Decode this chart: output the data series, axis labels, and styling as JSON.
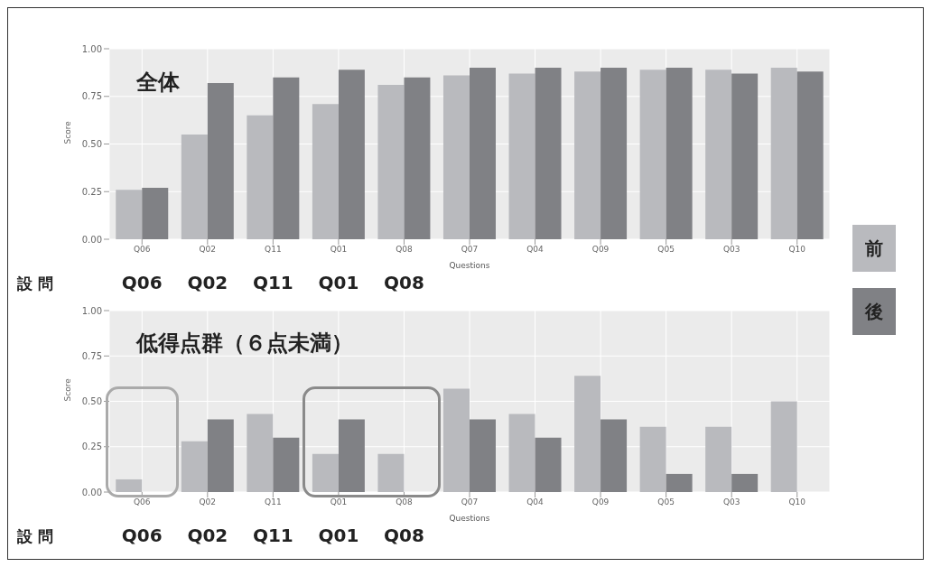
{
  "chart_data": [
    {
      "type": "bar",
      "title": "全体",
      "xlabel": "Questions",
      "ylabel": "Score",
      "categories": [
        "Q06",
        "Q02",
        "Q11",
        "Q01",
        "Q08",
        "Q07",
        "Q04",
        "Q09",
        "Q05",
        "Q03",
        "Q10"
      ],
      "series": [
        {
          "name": "前",
          "color": "#b9babe",
          "values": [
            0.26,
            0.55,
            0.65,
            0.71,
            0.81,
            0.86,
            0.87,
            0.88,
            0.89,
            0.89,
            0.9
          ]
        },
        {
          "name": "後",
          "color": "#808185",
          "values": [
            0.27,
            0.82,
            0.85,
            0.89,
            0.85,
            0.9,
            0.9,
            0.9,
            0.9,
            0.87,
            0.88
          ]
        }
      ],
      "ylim": [
        0,
        1
      ],
      "yticks": [
        {
          "value": 0,
          "label": "0.00"
        },
        {
          "value": 0.25,
          "label": "0.25"
        },
        {
          "value": 0.5,
          "label": "0.50"
        },
        {
          "value": 0.75,
          "label": "0.75"
        },
        {
          "value": 1,
          "label": "1.00"
        }
      ],
      "grid": true,
      "legend": "right",
      "annotations": [
        "設 問",
        "Q06",
        "Q02",
        "Q11",
        "Q01",
        "Q08"
      ]
    },
    {
      "type": "bar",
      "title": "低得点群（６点未満）",
      "xlabel": "Questions",
      "ylabel": "Score",
      "categories": [
        "Q06",
        "Q02",
        "Q11",
        "Q01",
        "Q08",
        "Q07",
        "Q04",
        "Q09",
        "Q05",
        "Q03",
        "Q10"
      ],
      "series": [
        {
          "color": "#b9babe",
          "values": [
            0.07,
            0.28,
            0.43,
            0.21,
            0.21,
            0.57,
            0.43,
            0.64,
            0.36,
            0.36,
            0.5
          ]
        },
        {
          "color": "#808185",
          "values": [
            0,
            0.4,
            0.3,
            0.4,
            0,
            0.4,
            0.3,
            0.4,
            0.1,
            0.1,
            0
          ]
        }
      ],
      "ylim": [
        0,
        1
      ],
      "yticks": [
        {
          "value": 0,
          "label": "0.00"
        },
        {
          "value": 0.25,
          "label": "0.25"
        },
        {
          "value": 0.5,
          "label": "0.50"
        },
        {
          "value": 0.75,
          "label": "0.75"
        },
        {
          "value": 1,
          "label": "1.00"
        }
      ],
      "grid": true,
      "annotations": [
        "設 問",
        "Q06",
        "Q02",
        "Q11",
        "Q01",
        "Q08"
      ]
    }
  ]
}
